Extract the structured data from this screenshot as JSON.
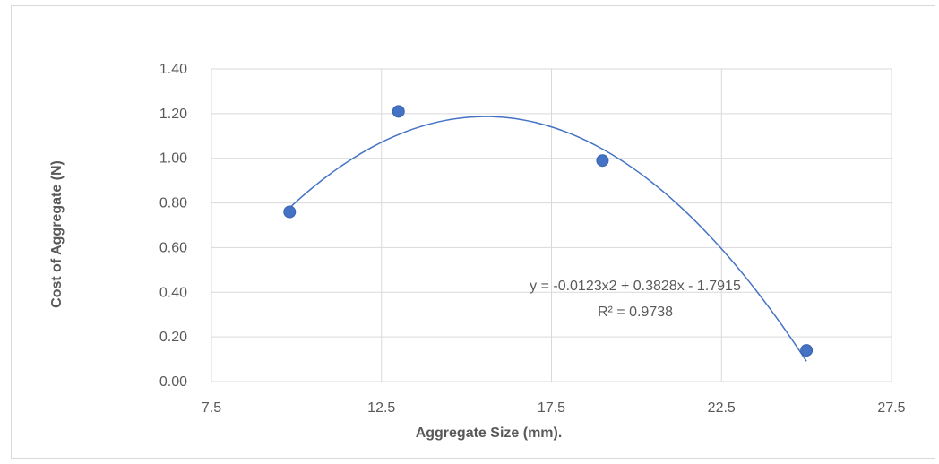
{
  "chart_data": {
    "type": "scatter",
    "xlabel": "Aggregate Size (mm).",
    "ylabel": "Cost of Aggregate (N)",
    "xlim": [
      7.5,
      27.5
    ],
    "ylim": [
      0,
      1.4
    ],
    "x_ticks": [
      "7.5",
      "12.5",
      "17.5",
      "22.5",
      "27.5"
    ],
    "y_ticks": [
      "0.00",
      "0.20",
      "0.40",
      "0.60",
      "0.80",
      "1.00",
      "1.20",
      "1.40"
    ],
    "grid": true,
    "legend": "none",
    "series": [
      {
        "x": [
          9.8,
          13.0,
          19.0,
          25.0
        ],
        "y": [
          0.76,
          1.21,
          0.99,
          0.14
        ]
      }
    ],
    "trendline": {
      "type": "polynomial",
      "degree": 2,
      "coefficients": [
        -0.0123,
        0.3828,
        -1.7915
      ],
      "x_range": [
        9.8,
        25.0
      ],
      "equation": "y = -0.0123x2 + 0.3828x - 1.7915",
      "r_squared": "R² = 0.9738"
    },
    "colors": {
      "marker": "#4472c4",
      "trendline": "#4472c4",
      "grid": "#d9d9d9",
      "text": "#595959"
    }
  }
}
